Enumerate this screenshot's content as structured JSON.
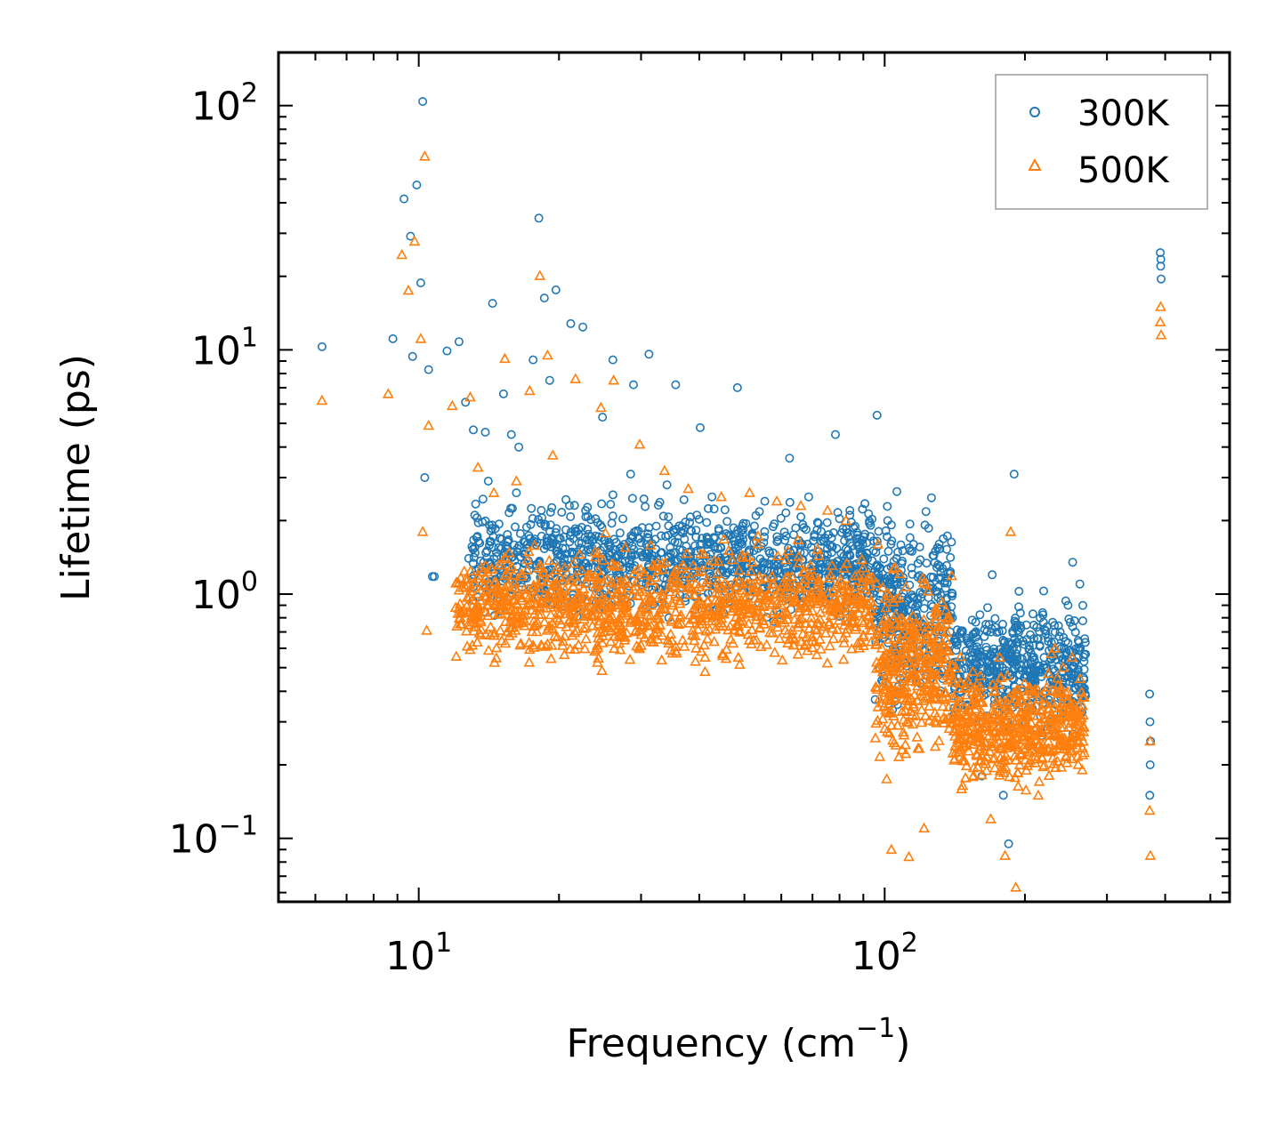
{
  "chart_data": {
    "type": "scatter",
    "title": "",
    "xlabel": "Frequency (cm",
    "xlabel_sup": "−1",
    "xlabel_end": ")",
    "ylabel": "Lifetime (ps)",
    "xscale": "log",
    "yscale": "log",
    "xlim": [
      5,
      550
    ],
    "ylim": [
      0.055,
      165
    ],
    "x_ticks": [
      {
        "value": 10,
        "base": "10",
        "exp": "1"
      },
      {
        "value": 100,
        "base": "10",
        "exp": "2"
      }
    ],
    "y_ticks": [
      {
        "value": 0.1,
        "base": "10",
        "exp": "−1"
      },
      {
        "value": 1,
        "base": "10",
        "exp": "0"
      },
      {
        "value": 10,
        "base": "10",
        "exp": "1"
      },
      {
        "value": 100,
        "base": "10",
        "exp": "2"
      }
    ],
    "legend_position": "top-right",
    "series": [
      {
        "name": "300K",
        "marker": "circle",
        "color": "#1f77b4",
        "x": [
          6.2,
          8.8,
          9.3,
          9.6,
          9.9,
          10.2,
          9.7,
          10.1,
          10.5,
          10.8,
          11.5,
          12.2,
          12.6,
          13.1,
          13.9,
          14.4,
          15.2,
          15.8,
          16.4,
          17.6,
          18.1,
          18.6,
          19.1,
          19.7,
          21.2,
          22.5,
          24.8,
          26.1,
          28.9,
          31.2,
          35.6,
          40.2,
          48.3,
          62.5,
          78.4,
          96.3,
          10.3,
          10.7,
          12.8,
          14.1,
          16.2,
          19.3,
          22.8,
          28.5,
          34.1,
          42.6,
          55.3,
          68.7,
          84.2,
          101.5,
          115.3,
          131.2,
          139.8,
          150.4,
          161.7,
          170.2,
          179.8,
          184.5,
          189.6,
          194.1,
          205.3,
          215.7,
          226.8,
          238.1,
          247.5,
          253.2,
          262.4,
          390.5,
          391.2,
          392.1,
          391.6,
          370.4,
          371.1,
          372.0,
          371.4,
          370.8
        ],
        "y": [
          10.3,
          11.1,
          41.5,
          29.2,
          47.3,
          104.0,
          9.4,
          18.8,
          8.3,
          1.18,
          9.9,
          10.8,
          6.1,
          4.7,
          4.6,
          15.5,
          6.6,
          4.5,
          4.0,
          9.1,
          34.6,
          16.3,
          7.5,
          17.6,
          12.8,
          12.4,
          5.3,
          9.1,
          7.2,
          9.6,
          7.2,
          4.8,
          7.0,
          3.6,
          4.5,
          5.4,
          3.0,
          1.18,
          1.4,
          2.9,
          2.6,
          1.7,
          2.2,
          3.1,
          2.8,
          2.5,
          2.4,
          2.5,
          2.2,
          2.0,
          1.6,
          1.3,
          0.8,
          0.35,
          0.18,
          1.2,
          0.15,
          0.095,
          3.1,
          0.7,
          0.45,
          0.8,
          0.3,
          0.7,
          0.9,
          1.35,
          1.1,
          25.0,
          22.0,
          19.5,
          23.5,
          0.39,
          0.3,
          0.25,
          0.2,
          0.15
        ]
      },
      {
        "name": "500K",
        "marker": "triangle",
        "color": "#ff7f0e",
        "x": [
          6.2,
          8.6,
          9.2,
          9.5,
          9.8,
          10.1,
          10.3,
          10.5,
          10.2,
          10.4,
          11.8,
          12.9,
          13.4,
          13.9,
          14.5,
          15.3,
          16.2,
          17.3,
          18.2,
          18.9,
          19.4,
          21.7,
          24.6,
          26.2,
          29.8,
          33.7,
          37.9,
          44.6,
          51.3,
          58.7,
          66.1,
          75.4,
          82.6,
          96.8,
          103.4,
          112.7,
          121.5,
          129.8,
          138.6,
          146.3,
          157.2,
          168.9,
          176.5,
          181.3,
          186.4,
          191.2,
          196.5,
          204.7,
          213.6,
          224.3,
          231.9,
          241.7,
          252.5,
          262.8,
          391.1,
          390.4,
          392.0,
          371.2,
          370.6,
          371.8
        ],
        "y": [
          6.2,
          6.6,
          24.5,
          17.5,
          27.8,
          11.1,
          62.0,
          4.9,
          1.8,
          0.71,
          5.9,
          6.4,
          3.3,
          0.84,
          2.6,
          9.2,
          2.9,
          6.8,
          20.1,
          9.5,
          3.7,
          7.6,
          5.8,
          7.5,
          4.1,
          3.2,
          2.7,
          2.5,
          2.6,
          2.4,
          2.3,
          2.2,
          2.0,
          1.6,
          0.09,
          0.084,
          0.11,
          0.55,
          0.45,
          0.3,
          0.25,
          0.12,
          0.55,
          0.085,
          1.8,
          0.063,
          0.28,
          0.4,
          0.15,
          0.3,
          0.6,
          0.5,
          0.55,
          0.45,
          15.0,
          13.0,
          11.5,
          0.25,
          0.13,
          0.085
        ]
      }
    ],
    "dense_clouds": [
      {
        "series": "300K",
        "x_range": [
          13,
          95
        ],
        "y_center_dex": 0.14,
        "y_spread_dex": 0.2,
        "count": 1100
      },
      {
        "series": "300K",
        "x_range": [
          95,
          140
        ],
        "y_center_dex": -0.05,
        "y_spread_dex": 0.32,
        "count": 350
      },
      {
        "series": "300K",
        "x_range": [
          140,
          270
        ],
        "y_center_dex": -0.3,
        "y_spread_dex": 0.22,
        "count": 500
      },
      {
        "series": "500K",
        "x_range": [
          12,
          95
        ],
        "y_center_dex": -0.05,
        "y_spread_dex": 0.2,
        "count": 1100
      },
      {
        "series": "500K",
        "x_range": [
          95,
          140
        ],
        "y_center_dex": -0.3,
        "y_spread_dex": 0.33,
        "count": 350
      },
      {
        "series": "500K",
        "x_range": [
          140,
          270
        ],
        "y_center_dex": -0.55,
        "y_spread_dex": 0.2,
        "count": 500
      }
    ]
  }
}
